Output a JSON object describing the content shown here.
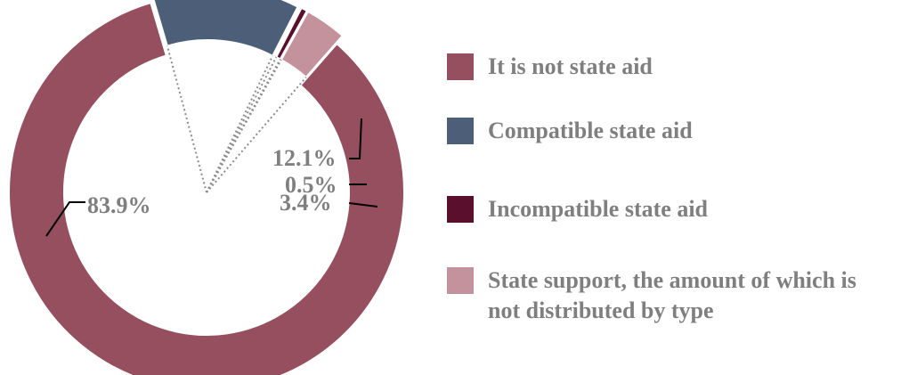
{
  "chart_data": {
    "type": "pie",
    "variant": "donut-exploded",
    "title": "",
    "slices": [
      {
        "label": "It is not state aid",
        "value": 83.9,
        "display": "83.9%",
        "color": "#954F5E"
      },
      {
        "label": "Compatible state aid",
        "value": 12.1,
        "display": "12.1%",
        "color": "#4D5E79"
      },
      {
        "label": "Incompatible state aid",
        "value": 0.5,
        "display": "0.5%",
        "color": "#5A0F2C"
      },
      {
        "label": "State support, the amount of which is not distributed by type",
        "value": 3.4,
        "display": "3.4%",
        "color": "#C4929D"
      }
    ],
    "legend_position": "right"
  },
  "legend": {
    "items": [
      {
        "lines": [
          "It is not state aid"
        ]
      },
      {
        "lines": [
          "Compatible state aid"
        ]
      },
      {
        "lines": [
          "Incompatible state aid"
        ]
      },
      {
        "lines": [
          "State support, the amount of which is",
          "not distributed by type"
        ]
      }
    ]
  }
}
